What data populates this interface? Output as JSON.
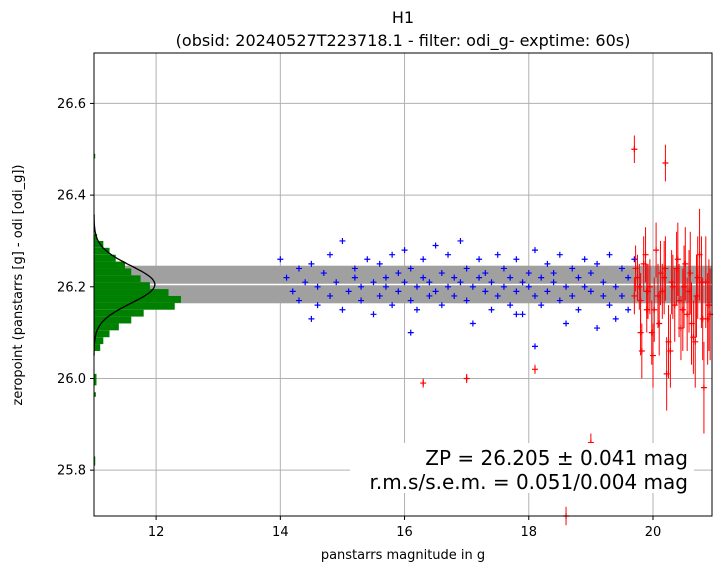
{
  "chart_data": {
    "type": "scatter",
    "title": "H1",
    "subtitle": "(obsid: 20240527T223718.1 - filter: odi_g- exptime: 60s)",
    "xlabel": "panstarrs magnitude in g",
    "ylabel": "zeropoint (panstarrs [g] - odi [odi_g])",
    "xlim": [
      11.0,
      20.95
    ],
    "ylim": [
      25.7,
      26.71
    ],
    "xticks": [
      "12",
      "14",
      "16",
      "18",
      "20"
    ],
    "yticks": [
      "25.8",
      "26.0",
      "26.2",
      "26.4",
      "26.6"
    ],
    "grid": true,
    "zeropoint": 26.205,
    "band": [
      26.164,
      26.246
    ],
    "annotations": {
      "zp_line": "ZP = 26.205 ± 0.041 mag",
      "rms_line": "r.m.s/s.e.m. = 0.051/0.004 mag"
    },
    "colors": {
      "used": "#0000ff",
      "rejected": "#ff0000",
      "histogram": "#008000",
      "band": "#a0a0a0",
      "zp_line": "#ffffff",
      "fit_curve": "#000000",
      "grid": "#b0b0b0"
    },
    "series": [
      {
        "color": "blue",
        "marker": "+",
        "x": [
          14.0,
          14.1,
          14.2,
          14.3,
          14.3,
          14.4,
          14.5,
          14.5,
          14.6,
          14.6,
          14.7,
          14.8,
          14.8,
          14.9,
          15.0,
          15.0,
          15.1,
          15.2,
          15.2,
          15.3,
          15.3,
          15.4,
          15.5,
          15.5,
          15.6,
          15.6,
          15.7,
          15.7,
          15.8,
          15.8,
          15.9,
          15.9,
          16.0,
          16.0,
          16.1,
          16.1,
          16.2,
          16.2,
          16.3,
          16.3,
          16.4,
          16.4,
          16.5,
          16.5,
          16.6,
          16.6,
          16.7,
          16.7,
          16.8,
          16.8,
          16.9,
          16.9,
          17.0,
          17.0,
          17.1,
          17.1,
          17.2,
          17.2,
          17.3,
          17.3,
          17.4,
          17.4,
          17.5,
          17.5,
          17.6,
          17.6,
          17.7,
          17.7,
          17.8,
          17.8,
          17.9,
          17.9,
          18.0,
          18.0,
          18.1,
          18.1,
          18.2,
          18.2,
          18.3,
          18.3,
          18.4,
          18.4,
          18.5,
          18.5,
          18.6,
          18.6,
          18.7,
          18.7,
          18.8,
          18.8,
          18.9,
          18.9,
          19.0,
          19.0,
          19.1,
          19.1,
          19.2,
          19.2,
          19.3,
          19.3,
          19.4,
          19.4,
          19.5,
          19.5,
          19.6,
          19.6,
          18.1,
          19.7,
          17.8,
          16.1
        ],
        "y": [
          26.26,
          26.22,
          26.19,
          26.24,
          26.17,
          26.21,
          26.13,
          26.25,
          26.2,
          26.16,
          26.23,
          26.18,
          26.27,
          26.21,
          26.15,
          26.3,
          26.19,
          26.22,
          26.24,
          26.17,
          26.2,
          26.26,
          26.14,
          26.21,
          26.25,
          26.18,
          26.22,
          26.2,
          26.27,
          26.16,
          26.19,
          26.23,
          26.21,
          26.28,
          26.17,
          26.24,
          26.2,
          26.15,
          26.22,
          26.26,
          26.18,
          26.21,
          26.29,
          26.19,
          26.23,
          26.16,
          26.2,
          26.27,
          26.22,
          26.18,
          26.3,
          26.21,
          26.17,
          26.24,
          26.2,
          26.12,
          26.22,
          26.26,
          26.19,
          26.23,
          26.15,
          26.21,
          26.27,
          26.18,
          26.2,
          26.24,
          26.16,
          26.22,
          26.19,
          26.26,
          26.21,
          26.14,
          26.23,
          26.2,
          26.28,
          26.18,
          26.22,
          26.16,
          26.25,
          26.19,
          26.21,
          26.23,
          26.17,
          26.27,
          26.2,
          26.12,
          26.24,
          26.18,
          26.22,
          26.15,
          26.26,
          26.2,
          26.19,
          26.23,
          26.11,
          26.25,
          26.18,
          26.21,
          26.16,
          26.27,
          26.2,
          26.13,
          26.24,
          26.18,
          26.22,
          26.15,
          26.07,
          26.26,
          26.14,
          26.1
        ]
      },
      {
        "color": "red",
        "marker": "+",
        "x": [
          19.7,
          19.75,
          19.8,
          19.85,
          19.9,
          19.95,
          20.0,
          20.05,
          20.1,
          20.15,
          20.2,
          20.25,
          20.3,
          20.35,
          20.4,
          20.45,
          20.5,
          20.55,
          20.6,
          20.65,
          20.7,
          20.75,
          20.8,
          20.85,
          20.9,
          19.72,
          19.82,
          19.92,
          20.02,
          20.12,
          20.22,
          20.32,
          20.42,
          20.52,
          20.62,
          20.72,
          20.82,
          20.92,
          19.78,
          19.88,
          19.98,
          20.08,
          20.18,
          20.28,
          20.38,
          20.48,
          20.58,
          20.68,
          20.78,
          20.88,
          19.7,
          20.2,
          16.3,
          17.0,
          18.1,
          19.8,
          19.9,
          19.0,
          18.6
        ],
        "y": [
          26.18,
          26.22,
          26.1,
          26.25,
          26.15,
          26.2,
          26.05,
          26.28,
          26.12,
          26.19,
          26.24,
          26.08,
          26.21,
          26.16,
          26.26,
          26.11,
          26.2,
          26.14,
          26.23,
          26.09,
          26.18,
          26.27,
          26.13,
          26.21,
          26.16,
          26.24,
          26.06,
          26.19,
          26.15,
          26.23,
          26.01,
          26.2,
          26.17,
          26.25,
          26.12,
          26.22,
          25.98,
          26.14,
          26.2,
          26.27,
          26.1,
          26.18,
          26.22,
          26.06,
          26.24,
          26.15,
          26.19,
          26.08,
          26.21,
          26.13,
          26.5,
          26.47,
          25.99,
          26.0,
          26.02,
          26.17,
          26.19,
          25.86,
          25.7
        ],
        "yerr": [
          0.04,
          0.05,
          0.05,
          0.06,
          0.05,
          0.06,
          0.07,
          0.06,
          0.07,
          0.06,
          0.07,
          0.08,
          0.07,
          0.08,
          0.08,
          0.07,
          0.09,
          0.08,
          0.09,
          0.08,
          0.09,
          0.1,
          0.09,
          0.1,
          0.1,
          0.05,
          0.06,
          0.06,
          0.07,
          0.07,
          0.08,
          0.07,
          0.08,
          0.08,
          0.09,
          0.09,
          0.1,
          0.1,
          0.05,
          0.06,
          0.07,
          0.07,
          0.08,
          0.08,
          0.08,
          0.09,
          0.09,
          0.1,
          0.1,
          0.1,
          0.03,
          0.04,
          0.01,
          0.01,
          0.01,
          0.06,
          0.06,
          0.02,
          0.02
        ],
        "xerr": [
          0.02,
          0.02,
          0.02,
          0.02,
          0.02,
          0.02,
          0.02,
          0.02,
          0.02,
          0.02,
          0.02,
          0.02,
          0.02,
          0.02,
          0.02,
          0.02,
          0.02,
          0.02,
          0.02,
          0.02,
          0.02,
          0.02,
          0.02,
          0.02,
          0.02,
          0.02,
          0.02,
          0.02,
          0.02,
          0.02,
          0.02,
          0.02,
          0.02,
          0.02,
          0.02,
          0.02,
          0.02,
          0.02,
          0.02,
          0.02,
          0.02,
          0.02,
          0.02,
          0.02,
          0.02,
          0.02,
          0.02,
          0.02,
          0.02,
          0.02,
          0.02,
          0.02,
          0.03,
          0.03,
          0.03,
          0.02,
          0.02,
          0.02,
          0.02
        ]
      }
    ],
    "histogram": {
      "orientation": "horizontal",
      "bin_edges": [
        26.06,
        26.075,
        26.09,
        26.105,
        26.12,
        26.135,
        26.15,
        26.165,
        26.18,
        26.195,
        26.21,
        26.225,
        26.24,
        26.255,
        26.27,
        26.285,
        26.3,
        26.315
      ],
      "counts_mag": [
        11.1,
        11.15,
        11.25,
        11.4,
        11.6,
        11.8,
        12.3,
        12.4,
        12.2,
        11.9,
        11.75,
        11.6,
        11.5,
        11.35,
        11.25,
        11.15,
        11.05
      ],
      "outlier_bins": [
        {
          "y0": 26.48,
          "y1": 26.49,
          "mag": 11.02
        },
        {
          "y0": 26.01,
          "y1": 25.985,
          "mag": 11.04
        },
        {
          "y0": 25.97,
          "y1": 25.96,
          "mag": 11.03
        },
        {
          "y0": 25.83,
          "y1": 25.81,
          "mag": 11.02
        }
      ],
      "fit_peak_mag": 11.98,
      "fit_sigma": 0.041
    }
  }
}
